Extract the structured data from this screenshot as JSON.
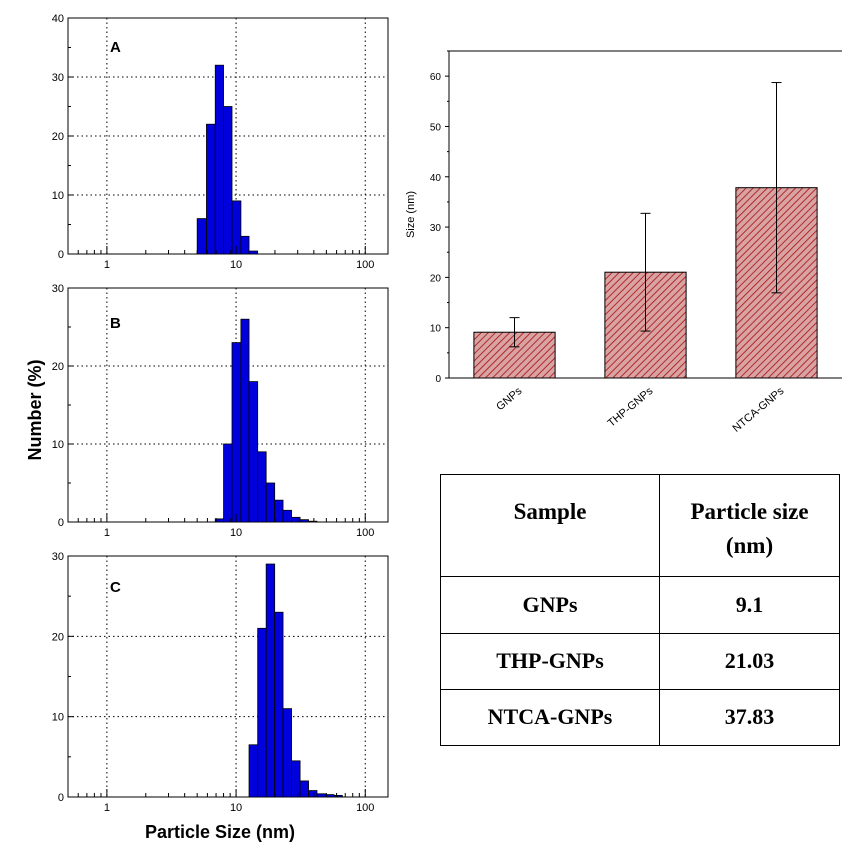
{
  "figure": {
    "y_axis_label": "Number (%)",
    "x_axis_label": "Particle Size (nm)"
  },
  "chart_data": [
    {
      "type": "bar",
      "panel": "A",
      "xscale": "log",
      "xlim": [
        0.5,
        150
      ],
      "ylim": [
        0,
        40
      ],
      "xticks": [
        1,
        10,
        100
      ],
      "yticks": [
        0,
        10,
        20,
        30,
        40
      ],
      "grid": true,
      "bar_color": "#0000dd",
      "bins": [
        {
          "x0": 5.0,
          "x1": 5.9,
          "value": 6
        },
        {
          "x0": 5.9,
          "x1": 6.9,
          "value": 22
        },
        {
          "x0": 6.9,
          "x1": 8.0,
          "value": 32
        },
        {
          "x0": 8.0,
          "x1": 9.3,
          "value": 25
        },
        {
          "x0": 9.3,
          "x1": 10.9,
          "value": 9
        },
        {
          "x0": 10.9,
          "x1": 12.6,
          "value": 3
        },
        {
          "x0": 12.6,
          "x1": 14.7,
          "value": 0.5
        }
      ]
    },
    {
      "type": "bar",
      "panel": "B",
      "xscale": "log",
      "xlim": [
        0.5,
        150
      ],
      "ylim": [
        0,
        30
      ],
      "xticks": [
        1,
        10,
        100
      ],
      "yticks": [
        0,
        10,
        20,
        30
      ],
      "grid": true,
      "bar_color": "#0000dd",
      "bins": [
        {
          "x0": 6.9,
          "x1": 8.0,
          "value": 0.4
        },
        {
          "x0": 8.0,
          "x1": 9.3,
          "value": 10
        },
        {
          "x0": 9.3,
          "x1": 10.9,
          "value": 23
        },
        {
          "x0": 10.9,
          "x1": 12.6,
          "value": 26
        },
        {
          "x0": 12.6,
          "x1": 14.7,
          "value": 18
        },
        {
          "x0": 14.7,
          "x1": 17.1,
          "value": 9
        },
        {
          "x0": 17.1,
          "x1": 19.9,
          "value": 5
        },
        {
          "x0": 19.9,
          "x1": 23.1,
          "value": 2.8
        },
        {
          "x0": 23.1,
          "x1": 26.9,
          "value": 1.5
        },
        {
          "x0": 26.9,
          "x1": 31.3,
          "value": 0.6
        },
        {
          "x0": 31.3,
          "x1": 36.4,
          "value": 0.3
        },
        {
          "x0": 36.4,
          "x1": 42.3,
          "value": 0.1
        }
      ]
    },
    {
      "type": "bar",
      "panel": "C",
      "xscale": "log",
      "xlim": [
        0.5,
        150
      ],
      "ylim": [
        0,
        30
      ],
      "xticks": [
        1,
        10,
        100
      ],
      "yticks": [
        0,
        10,
        20,
        30
      ],
      "grid": true,
      "bar_color": "#0000dd",
      "bins": [
        {
          "x0": 12.6,
          "x1": 14.7,
          "value": 6.5
        },
        {
          "x0": 14.7,
          "x1": 17.1,
          "value": 21
        },
        {
          "x0": 17.1,
          "x1": 19.9,
          "value": 29
        },
        {
          "x0": 19.9,
          "x1": 23.1,
          "value": 23
        },
        {
          "x0": 23.1,
          "x1": 26.9,
          "value": 11
        },
        {
          "x0": 26.9,
          "x1": 31.3,
          "value": 4.5
        },
        {
          "x0": 31.3,
          "x1": 36.4,
          "value": 2
        },
        {
          "x0": 36.4,
          "x1": 42.3,
          "value": 0.8
        },
        {
          "x0": 42.3,
          "x1": 49.2,
          "value": 0.4
        },
        {
          "x0": 49.2,
          "x1": 57.2,
          "value": 0.3
        },
        {
          "x0": 57.2,
          "x1": 66.5,
          "value": 0.2
        }
      ]
    },
    {
      "type": "bar",
      "panel": "size-summary",
      "categories": [
        "GNPs",
        "THP-GNPs",
        "NTCA-GNPs"
      ],
      "values": [
        9.1,
        21.03,
        37.83
      ],
      "errors": [
        2.9,
        11.7,
        20.9
      ],
      "ylabel": "Size (nm)",
      "ylim": [
        0,
        65
      ],
      "yticks": [
        0,
        10,
        20,
        30,
        40,
        50,
        60
      ],
      "bar_fill": "#d9a3a3",
      "bar_hatch": "#b02a2a",
      "grid": false
    }
  ],
  "table": {
    "headers": [
      "Sample",
      "Particle size (nm)"
    ],
    "rows": [
      [
        "GNPs",
        "9.1"
      ],
      [
        "THP-GNPs",
        "21.03"
      ],
      [
        "NTCA-GNPs",
        "37.83"
      ]
    ]
  }
}
